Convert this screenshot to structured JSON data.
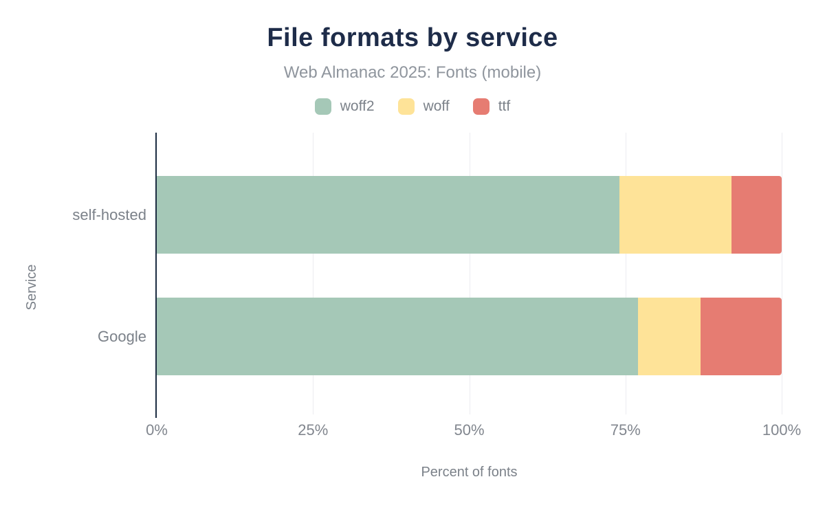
{
  "title": "File formats by service",
  "subtitle": "Web Almanac 2025: Fonts (mobile)",
  "chart_data": {
    "type": "bar",
    "orientation": "horizontal",
    "stacked": true,
    "title": "File formats by service",
    "subtitle": "Web Almanac 2025: Fonts (mobile)",
    "categories": [
      "self-hosted",
      "Google"
    ],
    "series": [
      {
        "name": "woff2",
        "color": "#a5c8b7",
        "values": [
          74,
          77
        ]
      },
      {
        "name": "woff",
        "color": "#fee398",
        "values": [
          18,
          10
        ]
      },
      {
        "name": "ttf",
        "color": "#e67c72",
        "values": [
          8,
          13
        ]
      }
    ],
    "xlabel": "Percent of fonts",
    "ylabel": "Service",
    "xlim": [
      0,
      100
    ],
    "x_ticks": [
      {
        "value": 0,
        "label": "0%"
      },
      {
        "value": 25,
        "label": "25%"
      },
      {
        "value": 50,
        "label": "50%"
      },
      {
        "value": 75,
        "label": "75%"
      },
      {
        "value": 100,
        "label": "100%"
      }
    ],
    "grid": "vertical",
    "legend_position": "top"
  },
  "colors": {
    "title": "#1e2c49",
    "subtitle": "#8f959d",
    "text": "#7b8189",
    "tick": "#81868e",
    "axis": "#1b2b41",
    "grid": "#ececf0",
    "background": "#ffffff"
  }
}
